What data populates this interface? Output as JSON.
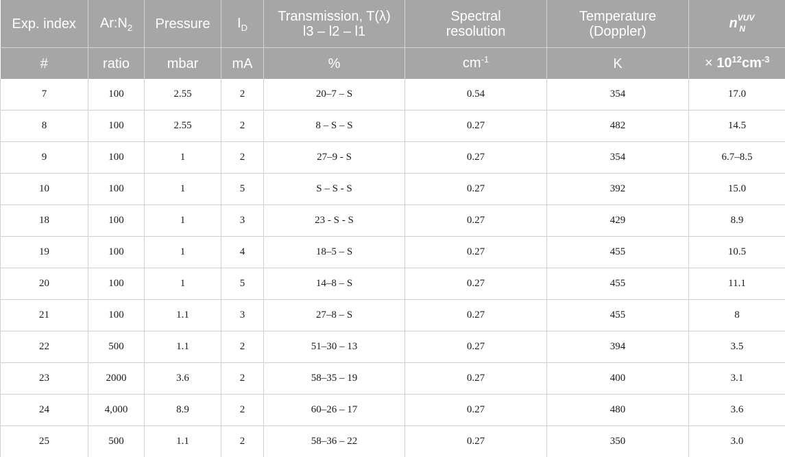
{
  "table": {
    "header": {
      "exp_index": "Exp. index",
      "ratio_main": "Ar:N",
      "ratio_sub": "2",
      "pressure": "Pressure",
      "current_main": "I",
      "current_sub": "D",
      "transmission_line1": "Transmission, T(λ)",
      "transmission_line2": "l3 – l2 – l1",
      "resolution_line1": "Spectral",
      "resolution_line2": "resolution",
      "temperature_line1": "Temperature",
      "temperature_line2": "(Doppler)",
      "density_symbol": "n",
      "density_sup": "VUV",
      "density_sub": "N"
    },
    "units": {
      "exp_index": "#",
      "ratio": "ratio",
      "pressure": "mbar",
      "current": "mA",
      "transmission": "%",
      "resolution_main": "cm",
      "resolution_exp": "-1",
      "temperature": "K",
      "density_prefix": "× ",
      "density_base": "10",
      "density_exp1": "12",
      "density_unit": "cm",
      "density_exp2": "-3"
    },
    "rows": [
      {
        "index": "7",
        "ratio": "100",
        "pressure": "2.55",
        "current": "2",
        "transmission": "20–7 – S",
        "resolution": "0.54",
        "temperature": "354",
        "density": "17.0"
      },
      {
        "index": "8",
        "ratio": "100",
        "pressure": "2.55",
        "current": "2",
        "transmission": "8 – S – S",
        "resolution": "0.27",
        "temperature": "482",
        "density": "14.5"
      },
      {
        "index": "9",
        "ratio": "100",
        "pressure": "1",
        "current": "2",
        "transmission": "27–9 - S",
        "resolution": "0.27",
        "temperature": "354",
        "density": "6.7–8.5"
      },
      {
        "index": "10",
        "ratio": "100",
        "pressure": "1",
        "current": "5",
        "transmission": "S – S - S",
        "resolution": "0.27",
        "temperature": "392",
        "density": "15.0"
      },
      {
        "index": "18",
        "ratio": "100",
        "pressure": "1",
        "current": "3",
        "transmission": "23 - S - S",
        "resolution": "0.27",
        "temperature": "429",
        "density": "8.9"
      },
      {
        "index": "19",
        "ratio": "100",
        "pressure": "1",
        "current": "4",
        "transmission": "18–5 – S",
        "resolution": "0.27",
        "temperature": "455",
        "density": "10.5"
      },
      {
        "index": "20",
        "ratio": "100",
        "pressure": "1",
        "current": "5",
        "transmission": "14–8 – S",
        "resolution": "0.27",
        "temperature": "455",
        "density": "11.1"
      },
      {
        "index": "21",
        "ratio": "100",
        "pressure": "1.1",
        "current": "3",
        "transmission": "27–8 – S",
        "resolution": "0.27",
        "temperature": "455",
        "density": "8"
      },
      {
        "index": "22",
        "ratio": "500",
        "pressure": "1.1",
        "current": "2",
        "transmission": "51–30 – 13",
        "resolution": "0.27",
        "temperature": "394",
        "density": "3.5"
      },
      {
        "index": "23",
        "ratio": "2000",
        "pressure": "3.6",
        "current": "2",
        "transmission": "58–35 – 19",
        "resolution": "0.27",
        "temperature": "400",
        "density": "3.1"
      },
      {
        "index": "24",
        "ratio": "4,000",
        "pressure": "8.9",
        "current": "2",
        "transmission": "60–26 – 17",
        "resolution": "0.27",
        "temperature": "480",
        "density": "3.6"
      },
      {
        "index": "25",
        "ratio": "500",
        "pressure": "1.1",
        "current": "2",
        "transmission": "58–36 – 22",
        "resolution": "0.27",
        "temperature": "350",
        "density": "3.0"
      }
    ]
  }
}
